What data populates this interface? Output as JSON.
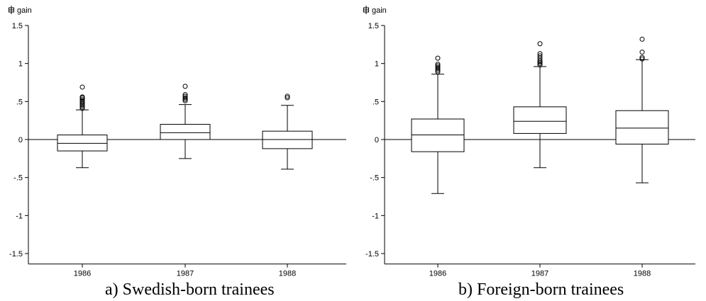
{
  "chart_data": [
    {
      "type": "box",
      "panel": "a",
      "caption": "a) Swedish-born trainees",
      "ylabel": "gain",
      "ylabel_icon": "box-plot-icon",
      "ylim": [
        -1.6,
        1.5
      ],
      "yticks": [
        1.5,
        1,
        0.5,
        0,
        -0.5,
        -1,
        -1.5
      ],
      "ytick_labels": [
        "1.5",
        "1",
        ".5",
        "0",
        "-.5",
        "-1",
        "-1.5"
      ],
      "reference_line": 0,
      "categories": [
        "1986",
        "1987",
        "1988"
      ],
      "boxes": [
        {
          "x": "1986",
          "whisker_low": -0.37,
          "q1": -0.15,
          "median": -0.05,
          "q3": 0.06,
          "whisker_high": 0.39,
          "outliers": [
            0.41,
            0.43,
            0.45,
            0.47,
            0.49,
            0.51,
            0.53,
            0.55,
            0.56,
            0.69
          ]
        },
        {
          "x": "1987",
          "whisker_low": -0.25,
          "q1": 0.0,
          "median": 0.09,
          "q3": 0.2,
          "whisker_high": 0.46,
          "outliers": [
            0.51,
            0.53,
            0.55,
            0.57,
            0.59,
            0.7
          ]
        },
        {
          "x": "1988",
          "whisker_low": -0.39,
          "q1": -0.12,
          "median": 0.0,
          "q3": 0.11,
          "whisker_high": 0.45,
          "outliers": [
            0.55,
            0.57
          ]
        }
      ]
    },
    {
      "type": "box",
      "panel": "b",
      "caption": "b) Foreign-born trainees",
      "ylabel": "gain",
      "ylabel_icon": "box-plot-icon",
      "ylim": [
        -1.6,
        1.5
      ],
      "yticks": [
        1.5,
        1,
        0.5,
        0,
        -0.5,
        -1,
        -1.5
      ],
      "ytick_labels": [
        "1.5",
        "1",
        ".5",
        "0",
        "-.5",
        "-1",
        "-1.5"
      ],
      "reference_line": 0,
      "categories": [
        "1986",
        "1987",
        "1988"
      ],
      "boxes": [
        {
          "x": "1986",
          "whisker_low": -0.71,
          "q1": -0.16,
          "median": 0.06,
          "q3": 0.27,
          "whisker_high": 0.86,
          "outliers": [
            0.89,
            0.91,
            0.93,
            0.95,
            0.97,
            0.99,
            1.07
          ]
        },
        {
          "x": "1987",
          "whisker_low": -0.37,
          "q1": 0.08,
          "median": 0.24,
          "q3": 0.43,
          "whisker_high": 0.96,
          "outliers": [
            0.98,
            1.0,
            1.02,
            1.04,
            1.07,
            1.1,
            1.13,
            1.26
          ]
        },
        {
          "x": "1988",
          "whisker_low": -0.57,
          "q1": -0.06,
          "median": 0.15,
          "q3": 0.38,
          "whisker_high": 1.05,
          "outliers": [
            1.06,
            1.08,
            1.15,
            1.32
          ]
        }
      ]
    }
  ],
  "colors": {
    "ink": "#000000",
    "background": "#ffffff"
  }
}
